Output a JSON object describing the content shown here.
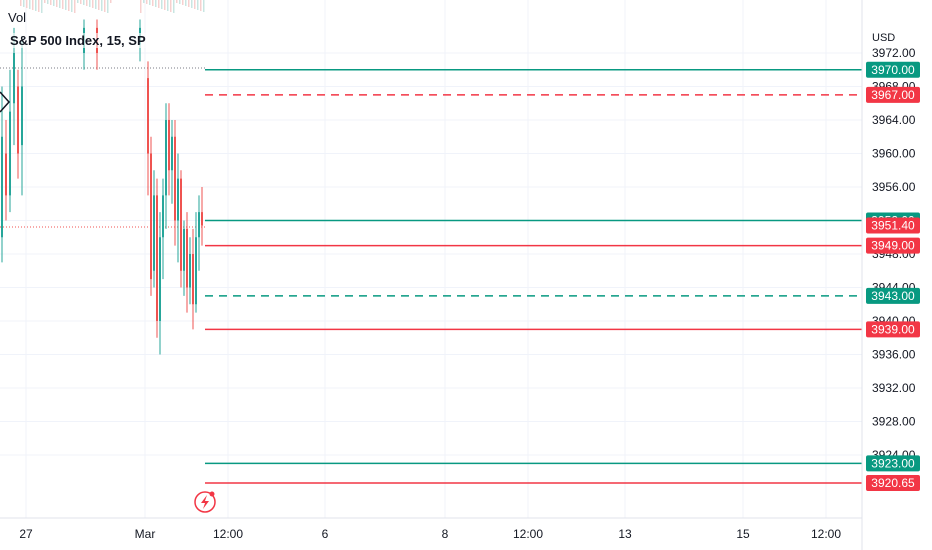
{
  "header": {
    "vol_label": "Vol",
    "title": "S&P 500 Index, 15, SP",
    "currency": "USD"
  },
  "colors": {
    "up": "#26a69a",
    "down": "#ef5350",
    "grid": "#f0f3fa",
    "axis_text": "#131722",
    "green_label": "#089981",
    "red_label": "#f23645"
  },
  "chart_data": {
    "type": "candlestick",
    "y_axis": {
      "range": [
        3917,
        3974
      ],
      "ticks": [
        3972,
        3968,
        3964,
        3960,
        3956,
        3952,
        3948,
        3944,
        3940,
        3936,
        3932,
        3928,
        3924
      ],
      "tick_labels": [
        "3972.00",
        "3968.00",
        "3964.00",
        "3960.00",
        "3956.00",
        "3952.00",
        "3948.00",
        "3944.00",
        "3940.00",
        "3936.00",
        "3932.00",
        "3928.00",
        "3924.00"
      ]
    },
    "x_axis": {
      "labels": [
        "27",
        "Mar",
        "12:00",
        "6",
        "8",
        "12:00",
        "13",
        "15",
        "12:00"
      ]
    },
    "current_price": 3951.4,
    "current_price_label": "3951.40",
    "levels": [
      {
        "value": 3970.0,
        "label": "3970.00",
        "color": "green",
        "style": "solid"
      },
      {
        "value": 3967.0,
        "label": "3967.00",
        "color": "red",
        "style": "dashed"
      },
      {
        "value": 3952.0,
        "label": "3952.00",
        "color": "green",
        "style": "solid"
      },
      {
        "value": 3949.0,
        "label": "3949.00",
        "color": "red",
        "style": "solid"
      },
      {
        "value": 3943.0,
        "label": "3943.00",
        "color": "green",
        "style": "dashed"
      },
      {
        "value": 3939.0,
        "label": "3939.00",
        "color": "red",
        "style": "solid"
      },
      {
        "value": 3923.0,
        "label": "3923.00",
        "color": "green",
        "style": "solid"
      },
      {
        "value": 3920.65,
        "label": "3920.65",
        "color": "red",
        "style": "solid"
      }
    ],
    "grid": true
  }
}
